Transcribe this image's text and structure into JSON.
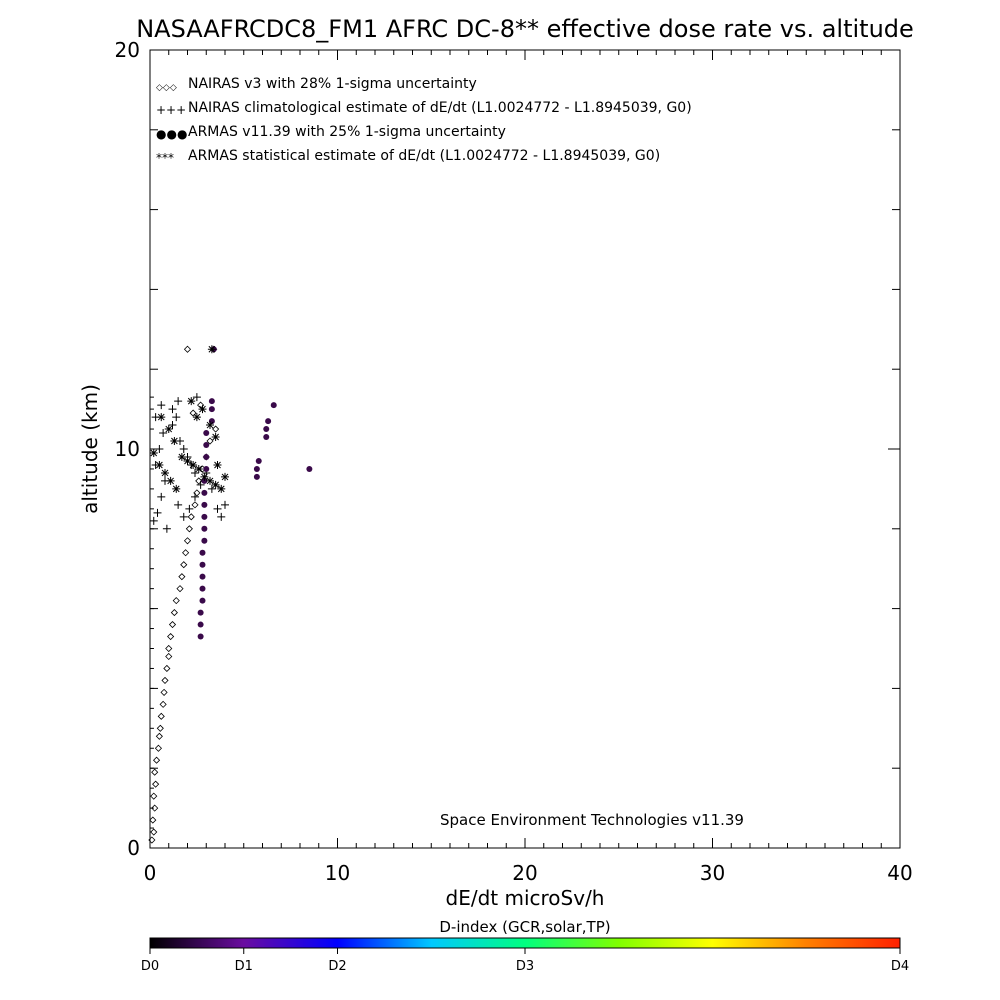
{
  "chart_data": {
    "type": "scatter",
    "title": "NASAAFRCDC8_FM1 AFRC DC-8** effective dose rate vs. altitude",
    "xlabel": "dE/dt microSv/h",
    "ylabel": "altitude (km)",
    "xlim": [
      0,
      40
    ],
    "ylim": [
      0,
      20
    ],
    "x_ticks": [
      "0",
      "10",
      "20",
      "30",
      "40"
    ],
    "y_ticks": [
      "0",
      "10",
      "20"
    ],
    "credit": "Space Environment Technologies v11.39",
    "legend": [
      {
        "symbol": "◇◇◇",
        "label": "NAIRAS v3 with 28% 1-sigma uncertainty"
      },
      {
        "symbol": "+++",
        "label": "NAIRAS climatological estimate of dE/dt (L1.0024772 - L1.8945039, G0)"
      },
      {
        "symbol": "●●●",
        "label": "ARMAS v11.39 with 25% 1-sigma uncertainty"
      },
      {
        "symbol": "***",
        "label": "ARMAS statistical estimate of dE/dt (L1.0024772 - L1.8945039, G0)"
      }
    ],
    "series": [
      {
        "name": "NAIRAS v3 with 28% 1-sigma uncertainty",
        "marker": "diamond",
        "color": "#000000",
        "points": [
          [
            0.1,
            0.2
          ],
          [
            0.2,
            0.4
          ],
          [
            0.15,
            0.7
          ],
          [
            0.25,
            1.0
          ],
          [
            0.2,
            1.3
          ],
          [
            0.3,
            1.6
          ],
          [
            0.25,
            1.9
          ],
          [
            0.35,
            2.2
          ],
          [
            0.45,
            2.5
          ],
          [
            0.5,
            2.8
          ],
          [
            0.55,
            3.0
          ],
          [
            0.6,
            3.3
          ],
          [
            0.7,
            3.6
          ],
          [
            0.75,
            3.9
          ],
          [
            0.8,
            4.2
          ],
          [
            0.9,
            4.5
          ],
          [
            1.0,
            4.8
          ],
          [
            1.0,
            5.0
          ],
          [
            1.1,
            5.3
          ],
          [
            1.2,
            5.6
          ],
          [
            1.3,
            5.9
          ],
          [
            1.4,
            6.2
          ],
          [
            1.6,
            6.5
          ],
          [
            1.7,
            6.8
          ],
          [
            1.8,
            7.1
          ],
          [
            1.9,
            7.4
          ],
          [
            2.0,
            7.7
          ],
          [
            2.1,
            8.0
          ],
          [
            2.2,
            8.3
          ],
          [
            2.4,
            8.6
          ],
          [
            2.5,
            8.9
          ],
          [
            2.6,
            9.2
          ],
          [
            2.8,
            9.5
          ],
          [
            3.0,
            9.8
          ],
          [
            3.2,
            10.2
          ],
          [
            3.5,
            10.5
          ],
          [
            2.0,
            12.5
          ],
          [
            3.4,
            12.5
          ],
          [
            2.3,
            10.9
          ],
          [
            2.7,
            11.1
          ]
        ]
      },
      {
        "name": "NAIRAS climatological estimate of dE/dt (L1.0024772 - L1.8945039, G0)",
        "marker": "plus",
        "color": "#000000",
        "points": [
          [
            0.2,
            8.2
          ],
          [
            0.4,
            8.4
          ],
          [
            0.6,
            8.8
          ],
          [
            0.8,
            9.2
          ],
          [
            0.3,
            9.6
          ],
          [
            0.5,
            10.0
          ],
          [
            0.7,
            10.4
          ],
          [
            1.2,
            10.6
          ],
          [
            1.4,
            10.8
          ],
          [
            1.6,
            10.2
          ],
          [
            1.8,
            10.0
          ],
          [
            2.0,
            9.8
          ],
          [
            2.2,
            9.6
          ],
          [
            2.4,
            9.4
          ],
          [
            1.5,
            8.6
          ],
          [
            1.8,
            8.3
          ],
          [
            2.1,
            8.5
          ],
          [
            2.4,
            8.8
          ],
          [
            2.7,
            9.1
          ],
          [
            3.0,
            9.4
          ],
          [
            3.3,
            9.0
          ],
          [
            3.6,
            8.5
          ],
          [
            3.8,
            8.3
          ],
          [
            4.0,
            8.6
          ],
          [
            1.2,
            11.0
          ],
          [
            1.5,
            11.2
          ],
          [
            2.5,
            11.3
          ],
          [
            0.9,
            8.0
          ],
          [
            0.3,
            10.8
          ],
          [
            0.6,
            11.1
          ]
        ]
      },
      {
        "name": "ARMAS v11.39 with 25% 1-sigma uncertainty",
        "marker": "dot",
        "color": "#3a0a4a",
        "points": [
          [
            2.7,
            5.3
          ],
          [
            2.7,
            5.6
          ],
          [
            2.7,
            5.9
          ],
          [
            2.8,
            6.2
          ],
          [
            2.8,
            6.5
          ],
          [
            2.8,
            6.8
          ],
          [
            2.8,
            7.1
          ],
          [
            2.8,
            7.4
          ],
          [
            2.9,
            7.7
          ],
          [
            2.9,
            8.0
          ],
          [
            2.9,
            8.3
          ],
          [
            2.9,
            8.6
          ],
          [
            2.9,
            8.9
          ],
          [
            2.9,
            9.2
          ],
          [
            3.0,
            9.5
          ],
          [
            3.0,
            9.8
          ],
          [
            3.0,
            10.1
          ],
          [
            3.0,
            10.4
          ],
          [
            3.3,
            10.7
          ],
          [
            3.3,
            11.0
          ],
          [
            3.3,
            11.2
          ],
          [
            5.7,
            9.3
          ],
          [
            5.7,
            9.5
          ],
          [
            5.8,
            9.7
          ],
          [
            6.2,
            10.3
          ],
          [
            6.2,
            10.5
          ],
          [
            6.3,
            10.7
          ],
          [
            6.6,
            11.1
          ],
          [
            8.5,
            9.5
          ],
          [
            3.4,
            12.5
          ]
        ]
      },
      {
        "name": "ARMAS statistical estimate of dE/dt (L1.0024772 - L1.8945039, G0)",
        "marker": "star",
        "color": "#000000",
        "points": [
          [
            0.2,
            9.9
          ],
          [
            0.5,
            9.6
          ],
          [
            0.8,
            9.4
          ],
          [
            1.1,
            9.2
          ],
          [
            1.4,
            9.0
          ],
          [
            1.7,
            9.8
          ],
          [
            2.0,
            9.7
          ],
          [
            2.3,
            9.6
          ],
          [
            2.6,
            9.5
          ],
          [
            2.9,
            9.3
          ],
          [
            3.2,
            9.2
          ],
          [
            3.5,
            9.1
          ],
          [
            3.8,
            9.0
          ],
          [
            4.0,
            9.3
          ],
          [
            2.5,
            10.8
          ],
          [
            2.8,
            11.0
          ],
          [
            3.2,
            10.6
          ],
          [
            3.5,
            10.3
          ],
          [
            2.2,
            11.2
          ],
          [
            3.3,
            12.5
          ],
          [
            1.0,
            10.5
          ],
          [
            1.3,
            10.2
          ],
          [
            0.6,
            10.8
          ],
          [
            3.6,
            9.6
          ]
        ]
      },
      {
        "name": "baseline",
        "marker": "tick",
        "color": "#000000",
        "points": [
          [
            0.05,
            0.5
          ],
          [
            0.05,
            1.0
          ],
          [
            0.05,
            1.5
          ],
          [
            0.05,
            2.0
          ],
          [
            0.05,
            2.5
          ],
          [
            0.05,
            3.0
          ],
          [
            0.05,
            3.5
          ],
          [
            0.05,
            4.0
          ],
          [
            0.05,
            4.5
          ],
          [
            0.05,
            5.0
          ],
          [
            0.05,
            5.5
          ],
          [
            0.05,
            6.0
          ],
          [
            0.05,
            6.5
          ],
          [
            0.05,
            7.0
          ],
          [
            0.05,
            7.5
          ],
          [
            0.05,
            8.0
          ],
          [
            0.05,
            8.5
          ],
          [
            0.05,
            9.0
          ],
          [
            0.05,
            9.5
          ],
          [
            0.05,
            10.0
          ],
          [
            0.05,
            10.5
          ],
          [
            0.05,
            11.0
          ],
          [
            0.05,
            11.3
          ]
        ]
      }
    ],
    "colorbar": {
      "title": "D-index (GCR,solar,TP)",
      "tick_labels": [
        "D0",
        "D1",
        "D2",
        "D3",
        "D4"
      ],
      "tick_fractions": [
        0,
        0.125,
        0.25,
        0.5,
        1.0
      ],
      "stops": [
        "#000000",
        "#6a0ca0",
        "#0000ff",
        "#00c8ff",
        "#00ff80",
        "#80ff00",
        "#ffff00",
        "#ff8000",
        "#ff2000"
      ]
    }
  }
}
